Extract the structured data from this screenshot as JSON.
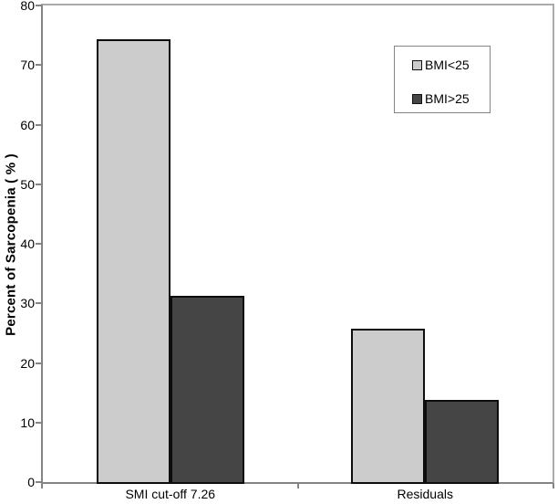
{
  "chart_data": {
    "type": "bar",
    "title": "",
    "xlabel": "",
    "ylabel": "Percent of Sarcopenia ( % )",
    "categories": [
      "SMI cut-off 7.26",
      "Residuals"
    ],
    "series": [
      {
        "name": "BMI<25",
        "color": "#cccccc",
        "values": [
          74.3,
          25.7
        ]
      },
      {
        "name": "BMI>25",
        "color": "#454545",
        "values": [
          31.3,
          13.8
        ]
      }
    ],
    "ylim": [
      0,
      80
    ],
    "yticks": [
      0,
      10,
      20,
      30,
      40,
      50,
      60,
      70,
      80
    ],
    "legend_position": "top-right",
    "grid": false,
    "colors": {
      "bar_border": "#0d0d0d",
      "axis": "#848484",
      "frame": "#ababab",
      "background": "#ffffff",
      "text": "#000000"
    }
  }
}
